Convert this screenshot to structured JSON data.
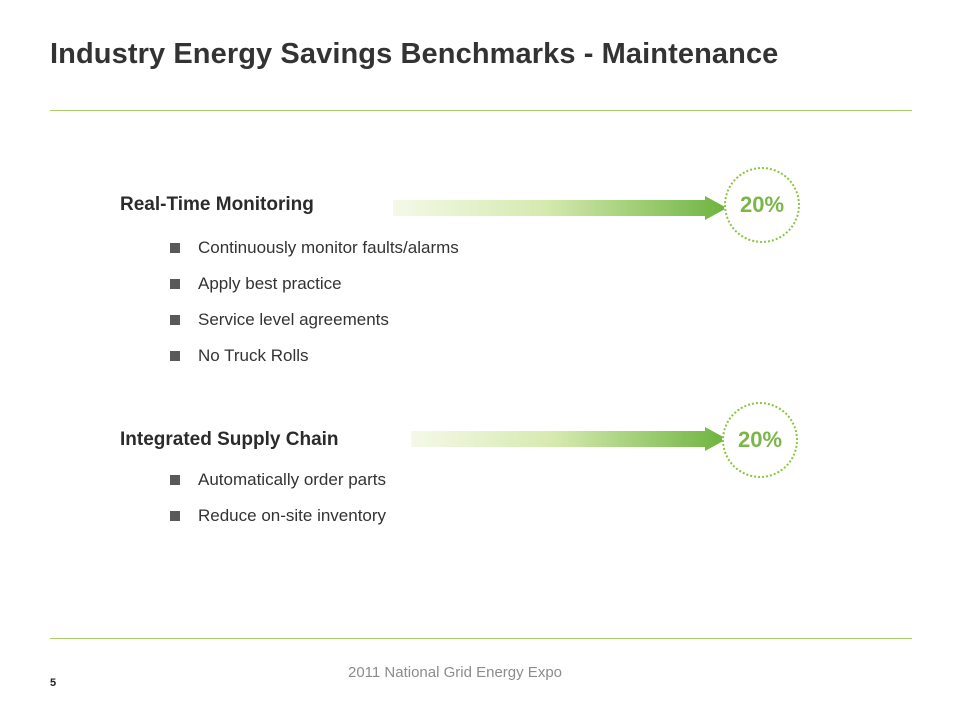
{
  "title": "Industry Energy Savings Benchmarks - Maintenance",
  "sections": [
    {
      "heading": "Real-Time Monitoring",
      "badge": "20%",
      "bullets": [
        "Continuously monitor faults/alarms",
        "Apply best practice",
        "Service level agreements",
        "No Truck Rolls"
      ]
    },
    {
      "heading": "Integrated Supply Chain",
      "badge": "20%",
      "bullets": [
        "Automatically order parts",
        "Reduce on-site inventory"
      ]
    }
  ],
  "footer": {
    "page_number": "5",
    "text": "2011 National Grid Energy Expo"
  },
  "colors": {
    "accent_green": "#8cc63f",
    "rule_green": "#a9cc6a",
    "badge_text": "#7ab648"
  },
  "icons": {
    "bullet": "square-bullet-icon",
    "arrow": "gradient-right-arrow-icon"
  }
}
